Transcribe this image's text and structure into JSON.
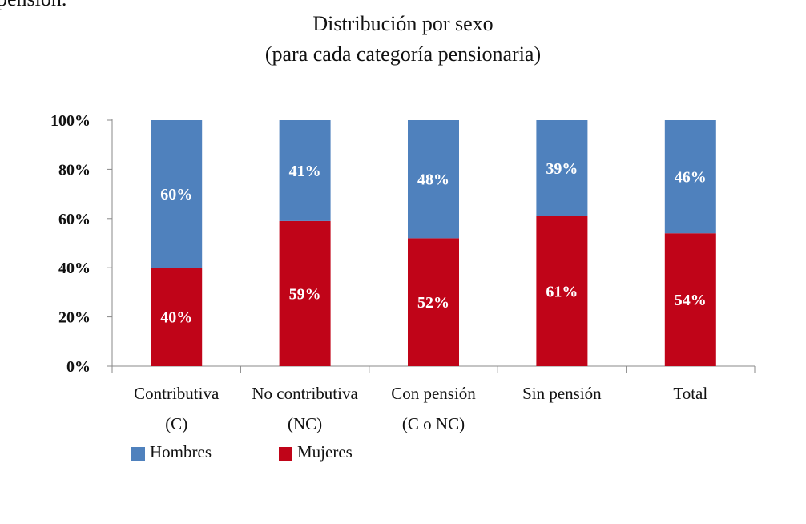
{
  "page": {
    "fragment_text": "pensión."
  },
  "chart_data": {
    "type": "bar",
    "stacked": true,
    "title": "Distribución por sexo",
    "subtitle": "(para cada categoría pensionaria)",
    "categories": [
      [
        "Contributiva",
        "(C)"
      ],
      [
        "No contributiva",
        "(NC)"
      ],
      [
        "Con pensión",
        "(C o NC)"
      ],
      [
        "Sin pensión"
      ],
      [
        "Total"
      ]
    ],
    "series": [
      {
        "name": "Mujeres",
        "values": [
          40,
          59,
          52,
          61,
          54
        ],
        "labels": [
          "40%",
          "59%",
          "52%",
          "61%",
          "54%"
        ],
        "color": "#c00418"
      },
      {
        "name": "Hombres",
        "values": [
          60,
          41,
          48,
          39,
          46
        ],
        "labels": [
          "60%",
          "41%",
          "48%",
          "39%",
          "46%"
        ],
        "color": "#4f81bd"
      }
    ],
    "yticks": [
      "0%",
      "20%",
      "40%",
      "60%",
      "80%",
      "100%"
    ],
    "ylim": [
      0,
      100
    ],
    "grid": false,
    "legend": {
      "position": "bottom-left",
      "items": [
        {
          "name": "Hombres",
          "color": "#4f81bd"
        },
        {
          "name": "Mujeres",
          "color": "#c00418"
        }
      ]
    }
  }
}
